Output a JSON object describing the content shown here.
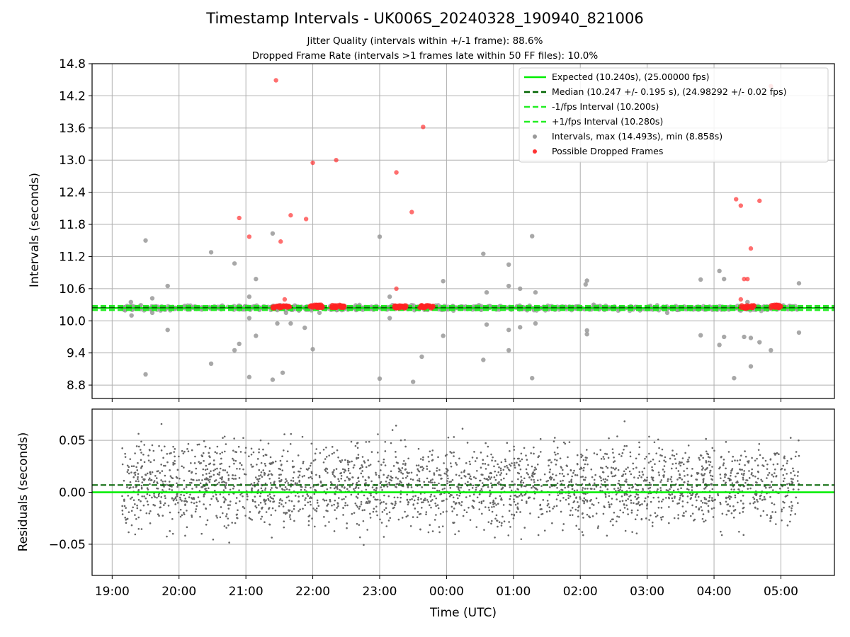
{
  "figure": {
    "title": "Timestamp Intervals - UK006S_20240328_190940_821006",
    "subtitle1": "Jitter Quality (intervals within +/-1 frame): 88.6%",
    "subtitle2": "Dropped Frame Rate (intervals >1 frames late within 50 FF files): 10.0%",
    "xlabel": "Time (UTC)"
  },
  "colors": {
    "expected": "#00ee00",
    "median": "#006400",
    "fps_interval": "#22ee22",
    "intervals": "#999999",
    "dropped": "#ff2222",
    "residuals": "#666666"
  },
  "legend": [
    "Expected (10.240s), (25.00000 fps)",
    "Median (10.247 +/- 0.195 s), (24.98292 +/- 0.02 fps)",
    "-1/fps Interval (10.200s)",
    "+1/fps Interval (10.280s)",
    "Intervals, max (14.493s), min (8.858s)",
    "Possible Dropped Frames"
  ],
  "chart_data": [
    {
      "type": "scatter",
      "title": "",
      "ylabel": "Intervals (seconds)",
      "xlabel": "",
      "x_range_hours": [
        18.7,
        29.8
      ],
      "ylim": [
        8.55,
        14.8
      ],
      "yticks": [
        8.8,
        9.4,
        10.0,
        10.6,
        11.2,
        11.8,
        12.4,
        13.0,
        13.6,
        14.2,
        14.8
      ],
      "ytick_labels": [
        "8.8",
        "9.4",
        "10.0",
        "10.6",
        "11.2",
        "11.8",
        "12.4",
        "13.0",
        "13.6",
        "14.2",
        "14.8"
      ],
      "xticks_hours": [
        19,
        20,
        21,
        22,
        23,
        24,
        25,
        26,
        27,
        28,
        29
      ],
      "grid": true,
      "legend_position": "top-right",
      "lines": {
        "expected": 10.24,
        "median": 10.247,
        "minus_1fps": 10.2,
        "plus_1fps": 10.28
      },
      "dense_band": {
        "x_start_hours": 19.15,
        "x_end_hours": 29.27,
        "center": 10.24,
        "spread": 0.06
      },
      "outliers": [
        {
          "x": 19.15,
          "y": 10.25
        },
        {
          "x": 19.28,
          "y": 10.35
        },
        {
          "x": 19.29,
          "y": 10.1
        },
        {
          "x": 19.5,
          "y": 11.5
        },
        {
          "x": 19.5,
          "y": 9.0
        },
        {
          "x": 19.6,
          "y": 10.42
        },
        {
          "x": 19.6,
          "y": 10.15
        },
        {
          "x": 19.83,
          "y": 10.65
        },
        {
          "x": 19.83,
          "y": 9.83
        },
        {
          "x": 20.48,
          "y": 11.28
        },
        {
          "x": 20.48,
          "y": 9.2
        },
        {
          "x": 20.83,
          "y": 11.07
        },
        {
          "x": 20.83,
          "y": 9.45
        },
        {
          "x": 20.9,
          "y": 9.57
        },
        {
          "x": 21.05,
          "y": 10.45
        },
        {
          "x": 21.05,
          "y": 10.05
        },
        {
          "x": 21.05,
          "y": 8.95
        },
        {
          "x": 21.15,
          "y": 10.78
        },
        {
          "x": 21.15,
          "y": 9.72
        },
        {
          "x": 21.4,
          "y": 11.63
        },
        {
          "x": 21.4,
          "y": 8.9
        },
        {
          "x": 21.47,
          "y": 9.95
        },
        {
          "x": 21.55,
          "y": 9.03
        },
        {
          "x": 21.6,
          "y": 10.15
        },
        {
          "x": 21.67,
          "y": 9.95
        },
        {
          "x": 21.88,
          "y": 9.87
        },
        {
          "x": 22.0,
          "y": 9.47
        },
        {
          "x": 22.1,
          "y": 10.15
        },
        {
          "x": 23.0,
          "y": 11.57
        },
        {
          "x": 23.0,
          "y": 8.92
        },
        {
          "x": 23.15,
          "y": 10.45
        },
        {
          "x": 23.15,
          "y": 10.05
        },
        {
          "x": 23.5,
          "y": 8.86
        },
        {
          "x": 23.63,
          "y": 9.33
        },
        {
          "x": 23.95,
          "y": 10.74
        },
        {
          "x": 23.95,
          "y": 9.72
        },
        {
          "x": 24.55,
          "y": 11.25
        },
        {
          "x": 24.55,
          "y": 9.27
        },
        {
          "x": 24.6,
          "y": 10.53
        },
        {
          "x": 24.6,
          "y": 9.93
        },
        {
          "x": 24.93,
          "y": 11.05
        },
        {
          "x": 24.93,
          "y": 10.65
        },
        {
          "x": 24.93,
          "y": 9.83
        },
        {
          "x": 24.93,
          "y": 9.45
        },
        {
          "x": 25.1,
          "y": 10.6
        },
        {
          "x": 25.1,
          "y": 9.88
        },
        {
          "x": 25.28,
          "y": 11.58
        },
        {
          "x": 25.28,
          "y": 8.93
        },
        {
          "x": 25.33,
          "y": 10.53
        },
        {
          "x": 25.33,
          "y": 9.95
        },
        {
          "x": 26.08,
          "y": 10.68
        },
        {
          "x": 26.1,
          "y": 10.75
        },
        {
          "x": 26.1,
          "y": 9.82
        },
        {
          "x": 26.1,
          "y": 9.75
        },
        {
          "x": 26.2,
          "y": 10.3
        },
        {
          "x": 27.3,
          "y": 10.15
        },
        {
          "x": 27.8,
          "y": 10.77
        },
        {
          "x": 27.8,
          "y": 9.73
        },
        {
          "x": 28.08,
          "y": 10.93
        },
        {
          "x": 28.08,
          "y": 9.55
        },
        {
          "x": 28.15,
          "y": 10.78
        },
        {
          "x": 28.15,
          "y": 9.7
        },
        {
          "x": 28.3,
          "y": 8.93
        },
        {
          "x": 28.45,
          "y": 9.7
        },
        {
          "x": 28.5,
          "y": 10.35
        },
        {
          "x": 28.55,
          "y": 9.68
        },
        {
          "x": 28.55,
          "y": 9.15
        },
        {
          "x": 28.68,
          "y": 9.6
        },
        {
          "x": 28.85,
          "y": 9.45
        },
        {
          "x": 29.27,
          "y": 10.7
        },
        {
          "x": 29.27,
          "y": 9.78
        }
      ],
      "dropped_frames": [
        {
          "x": 20.9,
          "y": 11.92
        },
        {
          "x": 21.05,
          "y": 11.57
        },
        {
          "x": 21.45,
          "y": 14.49
        },
        {
          "x": 21.52,
          "y": 11.48
        },
        {
          "x": 21.58,
          "y": 10.4
        },
        {
          "x": 21.67,
          "y": 11.97
        },
        {
          "x": 21.9,
          "y": 11.9
        },
        {
          "x": 22.0,
          "y": 12.95
        },
        {
          "x": 22.1,
          "y": 10.3
        },
        {
          "x": 22.35,
          "y": 13.0
        },
        {
          "x": 23.25,
          "y": 12.77
        },
        {
          "x": 23.25,
          "y": 10.6
        },
        {
          "x": 23.48,
          "y": 12.03
        },
        {
          "x": 23.65,
          "y": 13.62
        },
        {
          "x": 28.33,
          "y": 12.27
        },
        {
          "x": 28.4,
          "y": 12.15
        },
        {
          "x": 28.4,
          "y": 10.4
        },
        {
          "x": 28.45,
          "y": 10.78
        },
        {
          "x": 28.5,
          "y": 10.78
        },
        {
          "x": 28.55,
          "y": 11.35
        },
        {
          "x": 28.68,
          "y": 12.24
        },
        {
          "x": 28.85,
          "y": 14.38
        }
      ],
      "dropped_clusters": [
        {
          "x_start": 21.4,
          "x_end": 21.65,
          "y": 10.26
        },
        {
          "x_start": 21.95,
          "x_end": 22.15,
          "y": 10.27
        },
        {
          "x_start": 22.28,
          "x_end": 22.48,
          "y": 10.27
        },
        {
          "x_start": 23.22,
          "x_end": 23.4,
          "y": 10.26
        },
        {
          "x_start": 23.6,
          "x_end": 23.82,
          "y": 10.26
        },
        {
          "x_start": 28.4,
          "x_end": 28.6,
          "y": 10.26
        },
        {
          "x_start": 28.85,
          "x_end": 29.0,
          "y": 10.27
        }
      ]
    },
    {
      "type": "scatter",
      "title": "",
      "ylabel": "Residuals (seconds)",
      "xlabel": "Time (UTC)",
      "x_range_hours": [
        18.7,
        29.8
      ],
      "ylim": [
        -0.08,
        0.08
      ],
      "yticks": [
        -0.05,
        0.0,
        0.05
      ],
      "ytick_labels": [
        "−0.05",
        "0.00",
        "0.05"
      ],
      "xticks_hours": [
        19,
        20,
        21,
        22,
        23,
        24,
        25,
        26,
        27,
        28,
        29
      ],
      "xtick_labels": [
        "19:00",
        "20:00",
        "21:00",
        "22:00",
        "23:00",
        "00:00",
        "01:00",
        "02:00",
        "03:00",
        "04:00",
        "05:00"
      ],
      "grid": true,
      "lines": {
        "zero": 0.0,
        "median_offset": 0.007
      },
      "residual_band": {
        "x_start_hours": 19.15,
        "x_end_hours": 29.27,
        "center": 0.007,
        "spread": 0.025,
        "points": 2600
      }
    }
  ]
}
